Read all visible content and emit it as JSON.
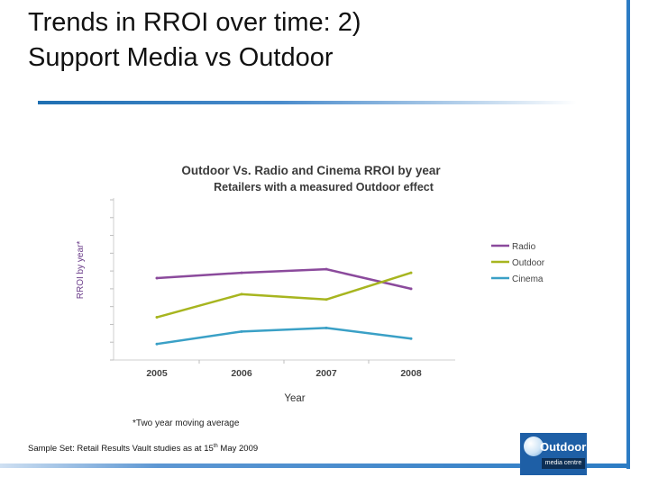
{
  "slide": {
    "title_line1": "Trends in RROI over time: 2)",
    "title_line2": "Support Media vs Outdoor",
    "footnote": "*Two year moving average",
    "sample_set_prefix": "Sample Set: Retail Results Vault studies as at 15",
    "sample_set_sup": "th",
    "sample_set_suffix": " May 2009",
    "logo_word": "Outdoor",
    "logo_sub": "media centre",
    "colors": {
      "title_rule": "#1f6fb2",
      "side_bar": "#2c7cc4",
      "logo_bg": "#1e5fa6"
    }
  },
  "chart_data": {
    "type": "line",
    "title": "Outdoor Vs. Radio and Cinema RROI by year",
    "subtitle": "Retailers with a measured Outdoor effect",
    "xlabel": "Year",
    "ylabel": "RROI by year*",
    "categories": [
      "2005",
      "2006",
      "2007",
      "2008"
    ],
    "ylim": [
      0,
      9
    ],
    "y_tick_count": 9,
    "y_tick_labels_shown": false,
    "grid": false,
    "legend_position": "right",
    "series": [
      {
        "name": "Radio",
        "color": "#8b4a9c",
        "values": [
          4.6,
          4.9,
          5.1,
          4.0
        ]
      },
      {
        "name": "Outdoor",
        "color": "#a7b51f",
        "values": [
          2.4,
          3.7,
          3.4,
          4.9
        ]
      },
      {
        "name": "Cinema",
        "color": "#3aa0c6",
        "values": [
          0.9,
          1.6,
          1.8,
          1.2
        ]
      }
    ]
  }
}
